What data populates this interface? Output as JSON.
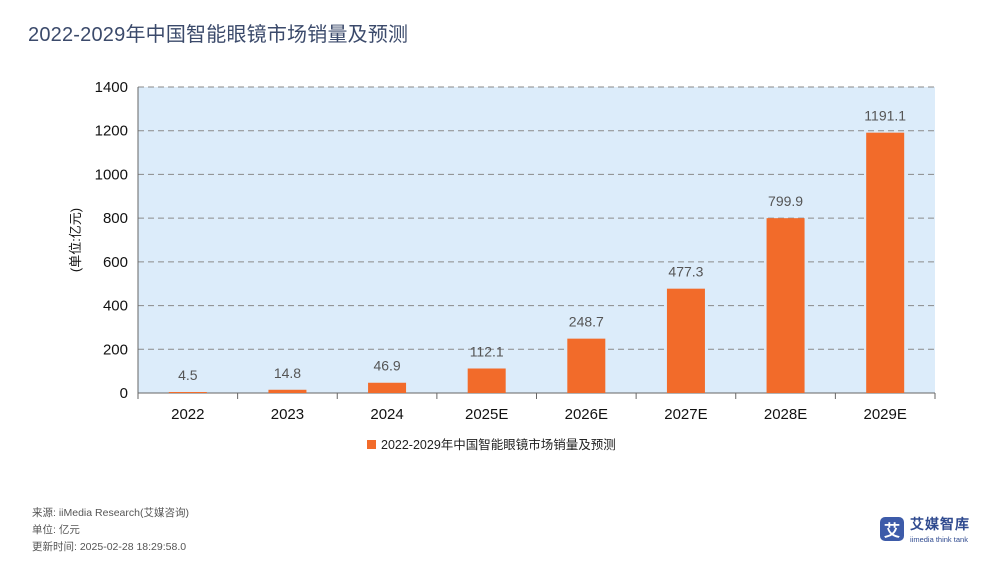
{
  "title": "2022-2029年中国智能眼镜市场销量及预测",
  "chart_data": {
    "type": "bar",
    "title": "2022-2029年中国智能眼镜市场销量及预测",
    "categories": [
      "2022",
      "2023",
      "2024",
      "2025E",
      "2026E",
      "2027E",
      "2028E",
      "2029E"
    ],
    "values": [
      4.5,
      14.8,
      46.9,
      112.1,
      248.7,
      477.3,
      799.9,
      1191.1
    ],
    "value_labels": [
      "4.5",
      "14.8",
      "46.9",
      "112.1",
      "248.7",
      "477.3",
      "799.9",
      "1191.1"
    ],
    "series_name": "2022-2029年中国智能眼镜市场销量及预测",
    "ylabel": "(单位:亿元)",
    "xlabel": "",
    "ylim": [
      0,
      1400
    ],
    "yticks": [
      0,
      200,
      400,
      600,
      800,
      1000,
      1200,
      1400
    ],
    "grid": true,
    "legend_position": "bottom-center"
  },
  "colors": {
    "bar": "#f26b2a",
    "plot_bg": "#dcecfa",
    "grid": "#8a8a8a",
    "title": "#3b4a6b"
  },
  "footer": {
    "source": "来源: iiMedia Research(艾媒咨询)",
    "unit": "单位: 亿元",
    "updated": "更新时间: 2025-02-28 18:29:58.0"
  },
  "brand": {
    "mark": "艾",
    "name": "艾媒智库",
    "sub": "iimedia think tank"
  }
}
